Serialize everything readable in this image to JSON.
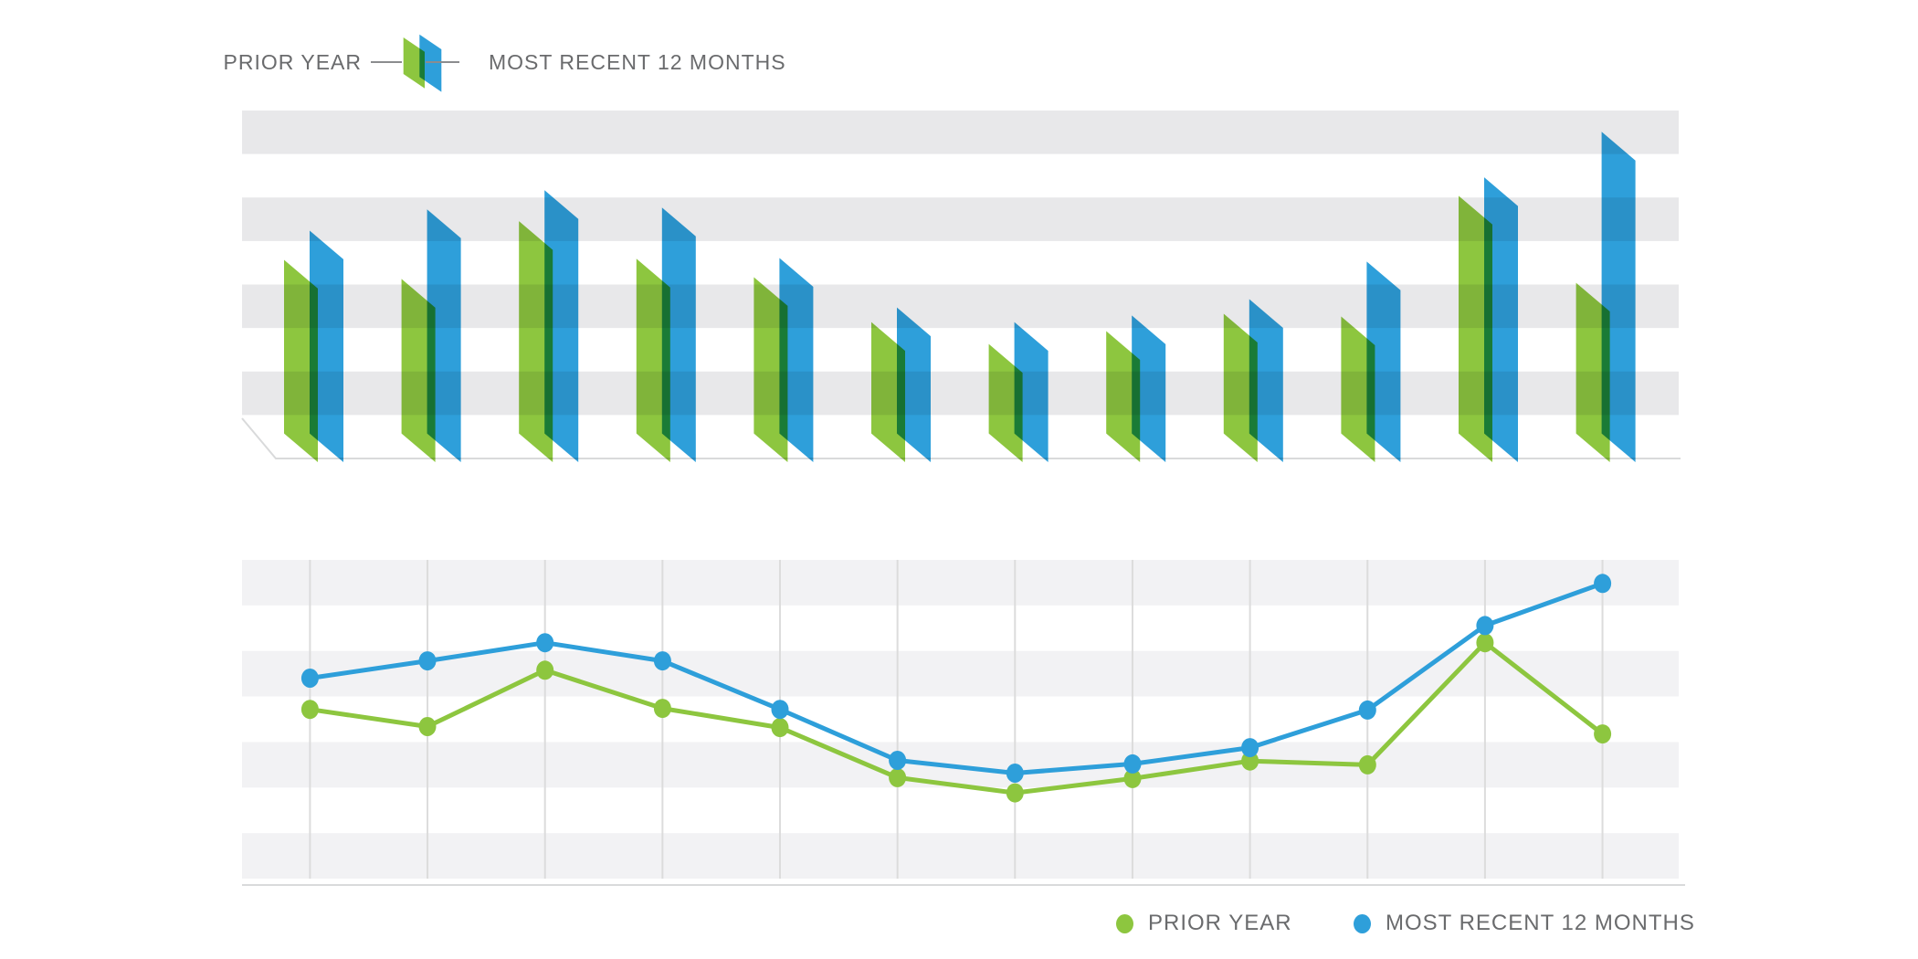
{
  "top_legend": {
    "left_label": "PRIOR YEAR",
    "right_label": "MOST RECENT 12 MONTHS",
    "icon": "dual-parallelogram-bars"
  },
  "bottom_legend": {
    "prior_year_label": "PRIOR YEAR",
    "recent_label": "MOST RECENT 12 MONTHS"
  },
  "colors": {
    "prior_year_green": "#8DC63F",
    "recent_blue": "#2E9FDA",
    "bar_stripe_gray": "#E8E8EA",
    "line_stripe_gray": "#F2F2F4",
    "grid_line": "#DCDCDC",
    "border_line": "#D9DADB",
    "legend_text": "#6A6B6D",
    "connector_line": "#8B8C8E"
  },
  "chart_data": [
    {
      "type": "bar",
      "title": "",
      "num_points": 12,
      "x_labels": [],
      "ylim": [
        0,
        100
      ],
      "grid": "horizontal alternating stripe bands, no axis labels",
      "bar_style": "paired skewed parallelogram bars, semi-transparent multiply overlap",
      "series": [
        {
          "name": "PRIOR YEAR",
          "color": "#8DC63F",
          "values": [
            57.1,
            51.6,
            68.2,
            57.4,
            52.1,
            39.2,
            32.9,
            36.6,
            41.6,
            40.8,
            75.5,
            50.5
          ]
        },
        {
          "name": "MOST RECENT 12 MONTHS",
          "color": "#2E9FDA",
          "values": [
            65.5,
            71.6,
            77.1,
            72.1,
            57.6,
            43.4,
            39.2,
            41.1,
            45.8,
            56.6,
            80.8,
            93.9
          ]
        }
      ]
    },
    {
      "type": "line",
      "title": "",
      "num_points": 12,
      "x_labels": [],
      "ylim": [
        0,
        100
      ],
      "grid": "vertical month gridlines plus horizontal alternating stripe bands",
      "marker": "filled ellipse",
      "series": [
        {
          "name": "PRIOR YEAR",
          "color": "#8DC63F",
          "values": [
            53.1,
            47.7,
            65.4,
            53.4,
            47.4,
            31.7,
            26.9,
            31.4,
            36.9,
            35.7,
            74.0,
            45.4
          ]
        },
        {
          "name": "MOST RECENT 12 MONTHS",
          "color": "#2E9FDA",
          "values": [
            62.9,
            68.3,
            74.0,
            68.3,
            53.1,
            37.1,
            33.1,
            36.0,
            41.1,
            52.9,
            79.4,
            92.6
          ]
        }
      ]
    }
  ]
}
